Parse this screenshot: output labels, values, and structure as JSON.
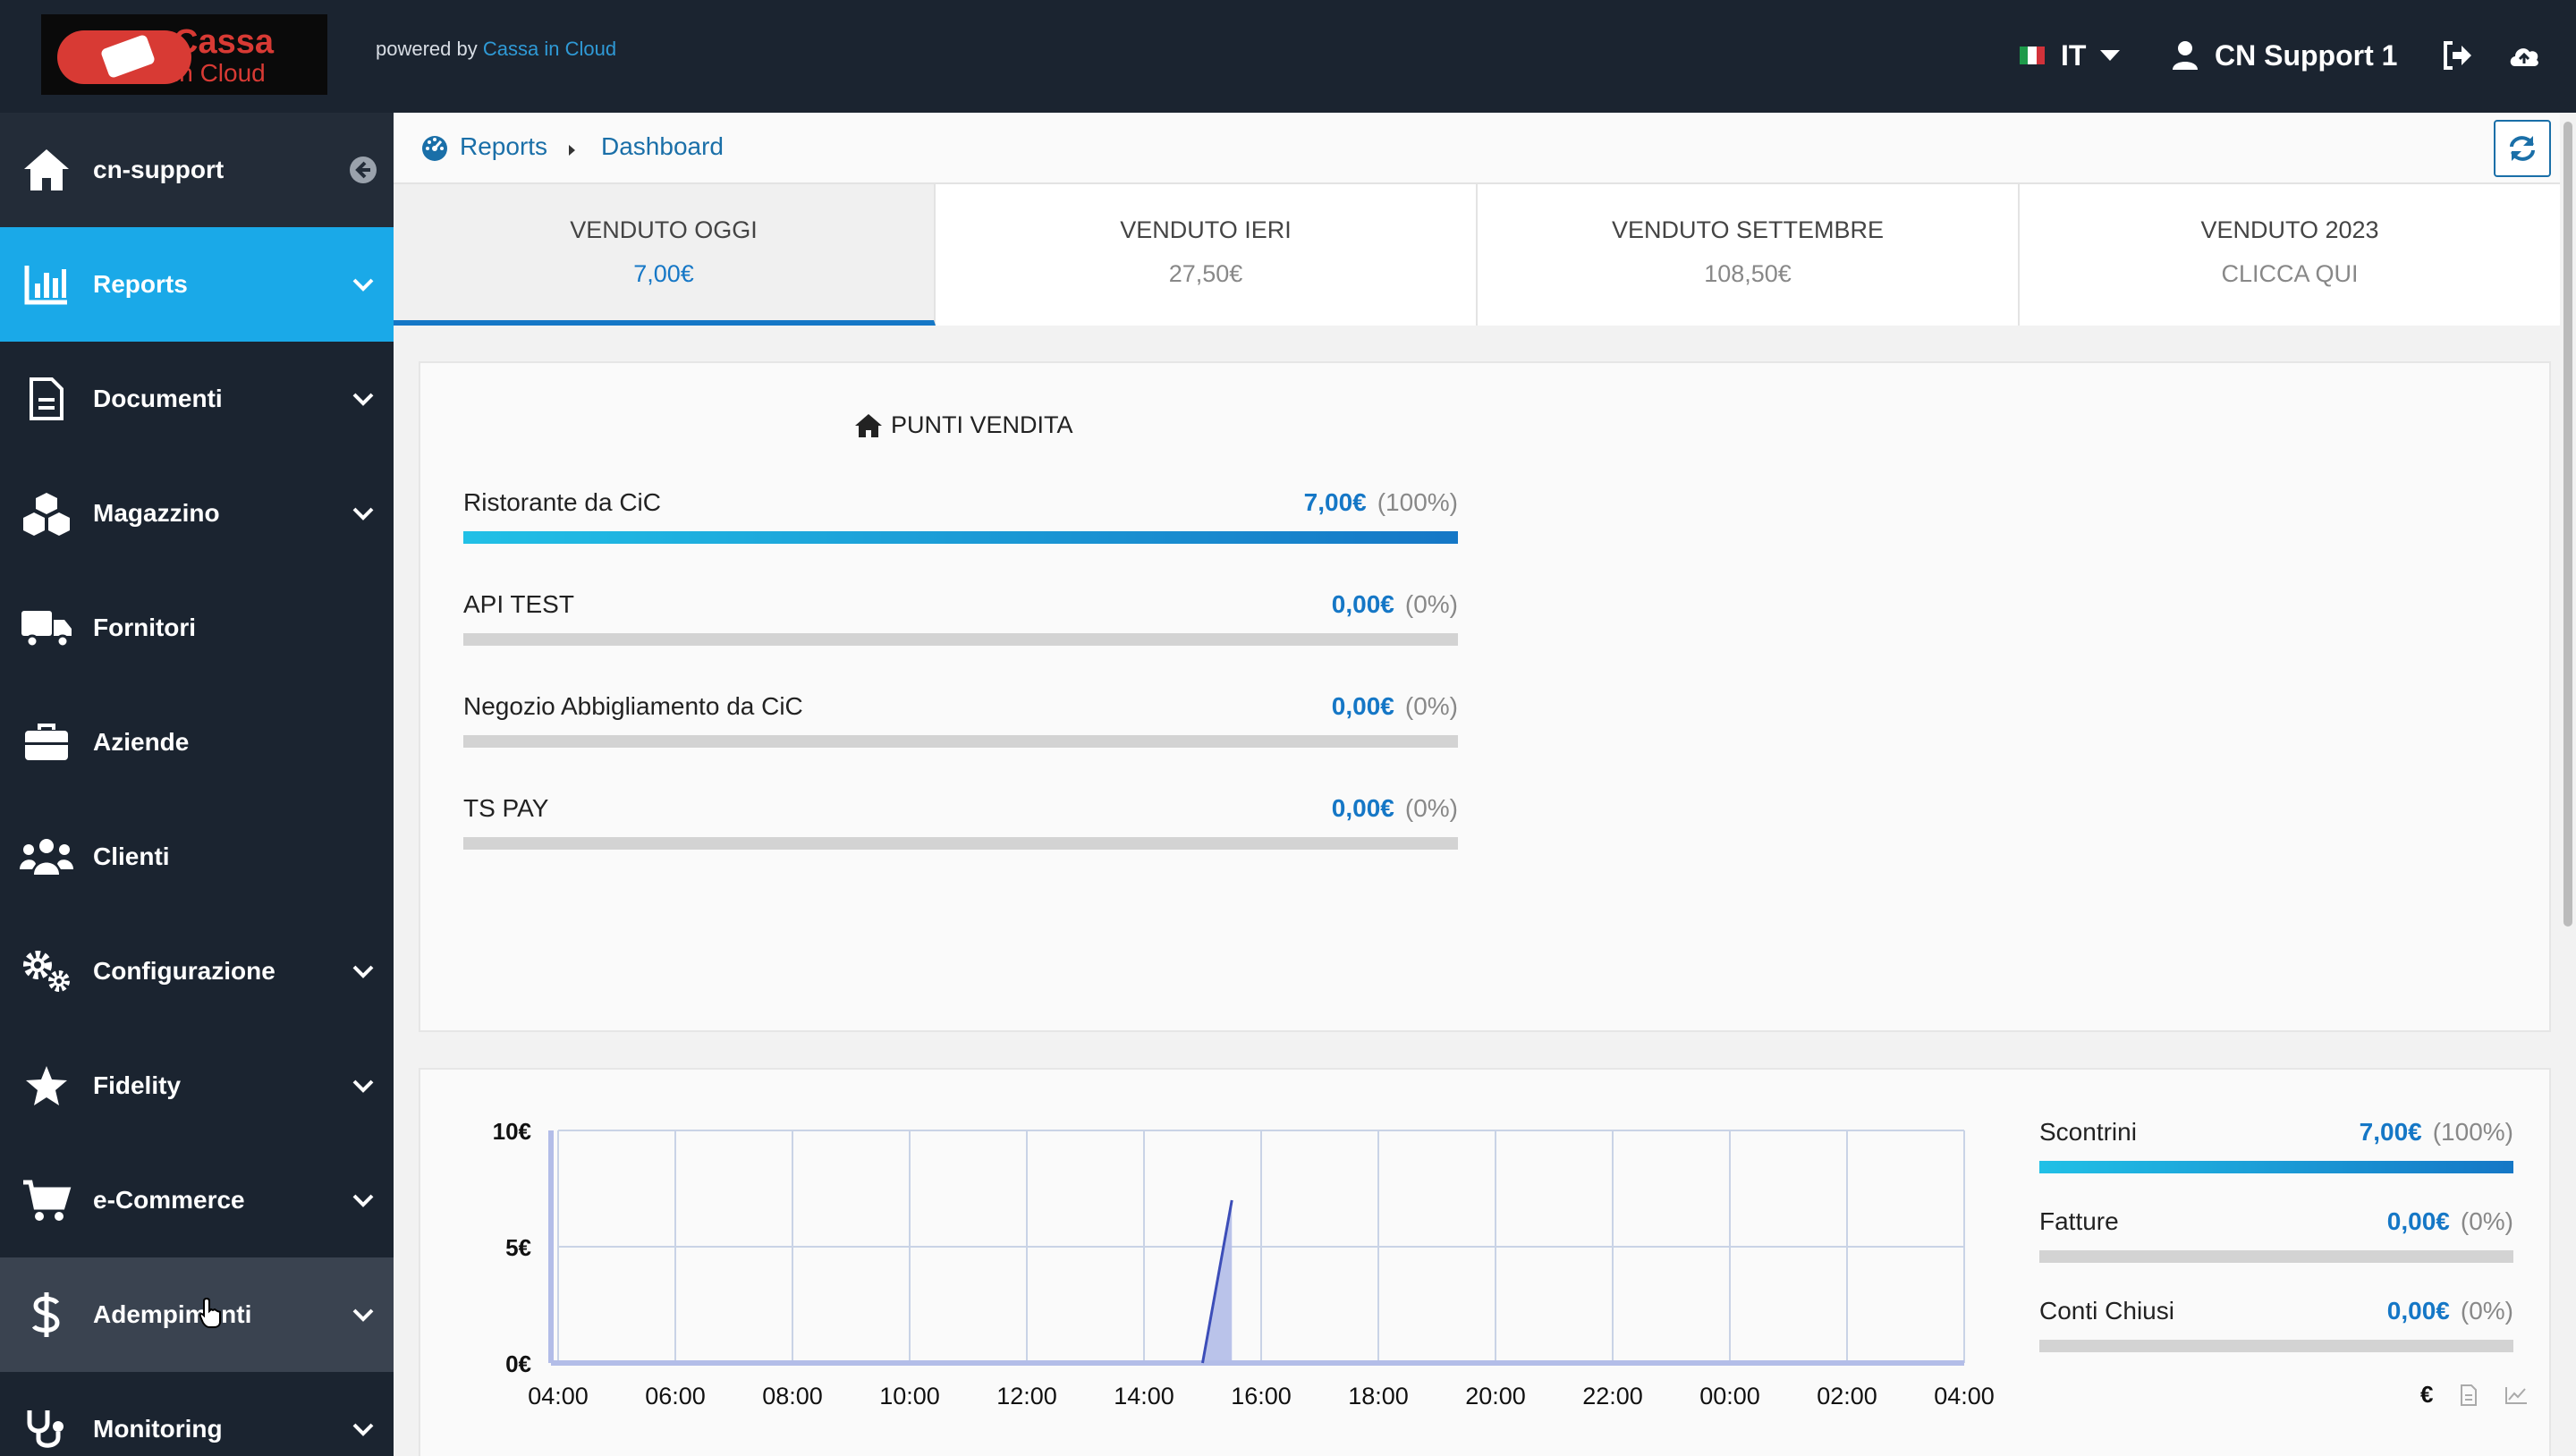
{
  "app": {
    "logo_text_1": "Cassa",
    "logo_text_2": "in Cloud",
    "powered_prefix": "powered by",
    "powered_link": "Cassa in Cloud",
    "language": "IT",
    "user_name": "CN Support 1",
    "accent_color": "#1aa9e8",
    "sidebar_color": "#1b2430"
  },
  "sidebar": {
    "home_label": "cn-support",
    "items": [
      {
        "label": "Reports",
        "icon": "bar-chart-icon",
        "has_chevron": true,
        "active": true
      },
      {
        "label": "Documenti",
        "icon": "document-icon",
        "has_chevron": true
      },
      {
        "label": "Magazzino",
        "icon": "boxes-icon",
        "has_chevron": true
      },
      {
        "label": "Fornitori",
        "icon": "truck-icon",
        "has_chevron": false
      },
      {
        "label": "Aziende",
        "icon": "briefcase-icon",
        "has_chevron": false
      },
      {
        "label": "Clienti",
        "icon": "users-icon",
        "has_chevron": false
      },
      {
        "label": "Configurazione",
        "icon": "cogs-icon",
        "has_chevron": true
      },
      {
        "label": "Fidelity",
        "icon": "star-icon",
        "has_chevron": true
      },
      {
        "label": "e-Commerce",
        "icon": "cart-icon",
        "has_chevron": true
      },
      {
        "label": "Adempimenti",
        "icon": "dollar-icon",
        "has_chevron": true
      },
      {
        "label": "Monitoring",
        "icon": "stethoscope-icon",
        "has_chevron": true
      }
    ]
  },
  "breadcrumb": {
    "root": "Reports",
    "current": "Dashboard"
  },
  "tabs": [
    {
      "label": "VENDUTO OGGI",
      "value": "7,00€"
    },
    {
      "label": "VENDUTO IERI",
      "value": "27,50€"
    },
    {
      "label": "VENDUTO SETTEMBRE",
      "value": "108,50€"
    },
    {
      "label": "VENDUTO 2023",
      "value": "CLICCA QUI"
    }
  ],
  "punti_vendita": {
    "title": "PUNTI VENDITA",
    "rows": [
      {
        "name": "Ristorante da CiC",
        "value": "7,00€",
        "percent_label": "(100%)",
        "fraction": 1.0
      },
      {
        "name": "API TEST",
        "value": "0,00€",
        "percent_label": "(0%)",
        "fraction": 0
      },
      {
        "name": "Negozio Abbigliamento da CiC",
        "value": "0,00€",
        "percent_label": "(0%)",
        "fraction": 0
      },
      {
        "name": "TS PAY",
        "value": "0,00€",
        "percent_label": "(0%)",
        "fraction": 0
      }
    ]
  },
  "doc_stats": [
    {
      "name": "Scontrini",
      "value": "7,00€",
      "percent_label": "(100%)",
      "fraction": 1.0
    },
    {
      "name": "Fatture",
      "value": "0,00€",
      "percent_label": "(0%)",
      "fraction": 0
    },
    {
      "name": "Conti Chiusi",
      "value": "0,00€",
      "percent_label": "(0%)",
      "fraction": 0
    }
  ],
  "chart_data": {
    "type": "area",
    "x": [
      "04:00",
      "06:00",
      "08:00",
      "10:00",
      "12:00",
      "14:00",
      "16:00",
      "18:00",
      "20:00",
      "22:00",
      "00:00",
      "02:00",
      "04:00"
    ],
    "y_ticks": [
      "10€",
      "5€",
      "0€"
    ],
    "ylim": [
      0,
      10
    ],
    "series": [
      {
        "points": [
          [
            15.0,
            0
          ],
          [
            15.5,
            7
          ],
          [
            15.5,
            0
          ]
        ]
      }
    ],
    "grid": true,
    "line_color": "#3c4db8",
    "fill_color": "#b3bde8"
  }
}
